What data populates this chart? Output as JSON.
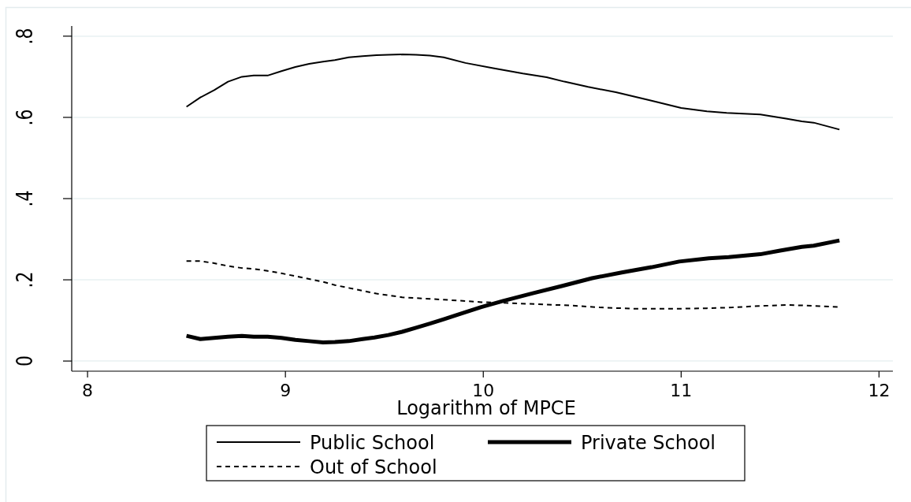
{
  "chart_data": {
    "type": "line",
    "xlabel": "Logarithm of MPCE",
    "xlim": [
      7.92,
      12.07
    ],
    "xticks": [
      8,
      9,
      10,
      11,
      12
    ],
    "ylim": [
      -0.025,
      0.825
    ],
    "yticks": [
      0,
      {
        "value": 0.2,
        "label": ".2"
      },
      {
        "value": 0.4,
        "label": ".4"
      },
      {
        "value": 0.6,
        "label": ".6"
      },
      {
        "value": 0.8,
        "label": ".8"
      }
    ],
    "grid": "y",
    "legend": "bottom",
    "series": [
      {
        "name": "Public School",
        "color": "#000000",
        "line_style": "solid",
        "x": [
          8.5,
          8.57,
          8.64,
          8.71,
          8.78,
          8.84,
          8.91,
          8.98,
          9.05,
          9.12,
          9.19,
          9.25,
          9.32,
          9.39,
          9.46,
          9.52,
          9.59,
          9.66,
          9.73,
          9.8,
          9.91,
          10.05,
          10.2,
          10.32,
          10.41,
          10.53,
          10.67,
          10.85,
          11.0,
          11.13,
          11.23,
          11.4,
          11.53,
          11.61,
          11.67,
          11.8
        ],
        "values": [
          0.626,
          0.649,
          0.667,
          0.688,
          0.7,
          0.703,
          0.703,
          0.714,
          0.724,
          0.732,
          0.737,
          0.741,
          0.748,
          0.751,
          0.753,
          0.754,
          0.755,
          0.754,
          0.752,
          0.748,
          0.734,
          0.721,
          0.708,
          0.699,
          0.688,
          0.675,
          0.662,
          0.641,
          0.623,
          0.615,
          0.611,
          0.607,
          0.597,
          0.59,
          0.587,
          0.57
        ]
      },
      {
        "name": "Private School",
        "color": "#000000",
        "line_style": "solid",
        "x": [
          8.5,
          8.57,
          8.64,
          8.71,
          8.78,
          8.84,
          8.91,
          8.98,
          9.05,
          9.12,
          9.19,
          9.25,
          9.32,
          9.39,
          9.45,
          9.52,
          9.59,
          9.66,
          9.73,
          9.8,
          9.87,
          9.99,
          10.1,
          10.25,
          10.4,
          10.55,
          10.7,
          10.85,
          10.99,
          11.14,
          11.24,
          11.4,
          11.5,
          11.61,
          11.67,
          11.8
        ],
        "values": [
          0.062,
          0.054,
          0.057,
          0.06,
          0.062,
          0.06,
          0.06,
          0.057,
          0.052,
          0.049,
          0.046,
          0.047,
          0.049,
          0.054,
          0.058,
          0.064,
          0.072,
          0.082,
          0.092,
          0.103,
          0.114,
          0.133,
          0.148,
          0.167,
          0.185,
          0.204,
          0.218,
          0.231,
          0.245,
          0.253,
          0.256,
          0.263,
          0.272,
          0.281,
          0.284,
          0.297
        ]
      },
      {
        "name": "Out of School",
        "color": "#000000",
        "line_style": "dashed",
        "x": [
          8.5,
          8.57,
          8.64,
          8.71,
          8.78,
          8.84,
          8.91,
          8.98,
          9.05,
          9.12,
          9.19,
          9.25,
          9.32,
          9.39,
          9.46,
          9.52,
          9.59,
          9.66,
          9.73,
          9.8,
          9.87,
          9.99,
          10.17,
          10.32,
          10.44,
          10.59,
          10.75,
          10.9,
          11.0,
          11.13,
          11.26,
          11.37,
          11.53,
          11.61,
          11.7,
          11.8
        ],
        "values": [
          0.246,
          0.246,
          0.241,
          0.234,
          0.229,
          0.227,
          0.222,
          0.216,
          0.209,
          0.202,
          0.195,
          0.187,
          0.18,
          0.173,
          0.166,
          0.162,
          0.157,
          0.155,
          0.153,
          0.151,
          0.149,
          0.145,
          0.142,
          0.139,
          0.137,
          0.132,
          0.129,
          0.129,
          0.129,
          0.13,
          0.132,
          0.135,
          0.138,
          0.137,
          0.135,
          0.133
        ]
      }
    ]
  }
}
